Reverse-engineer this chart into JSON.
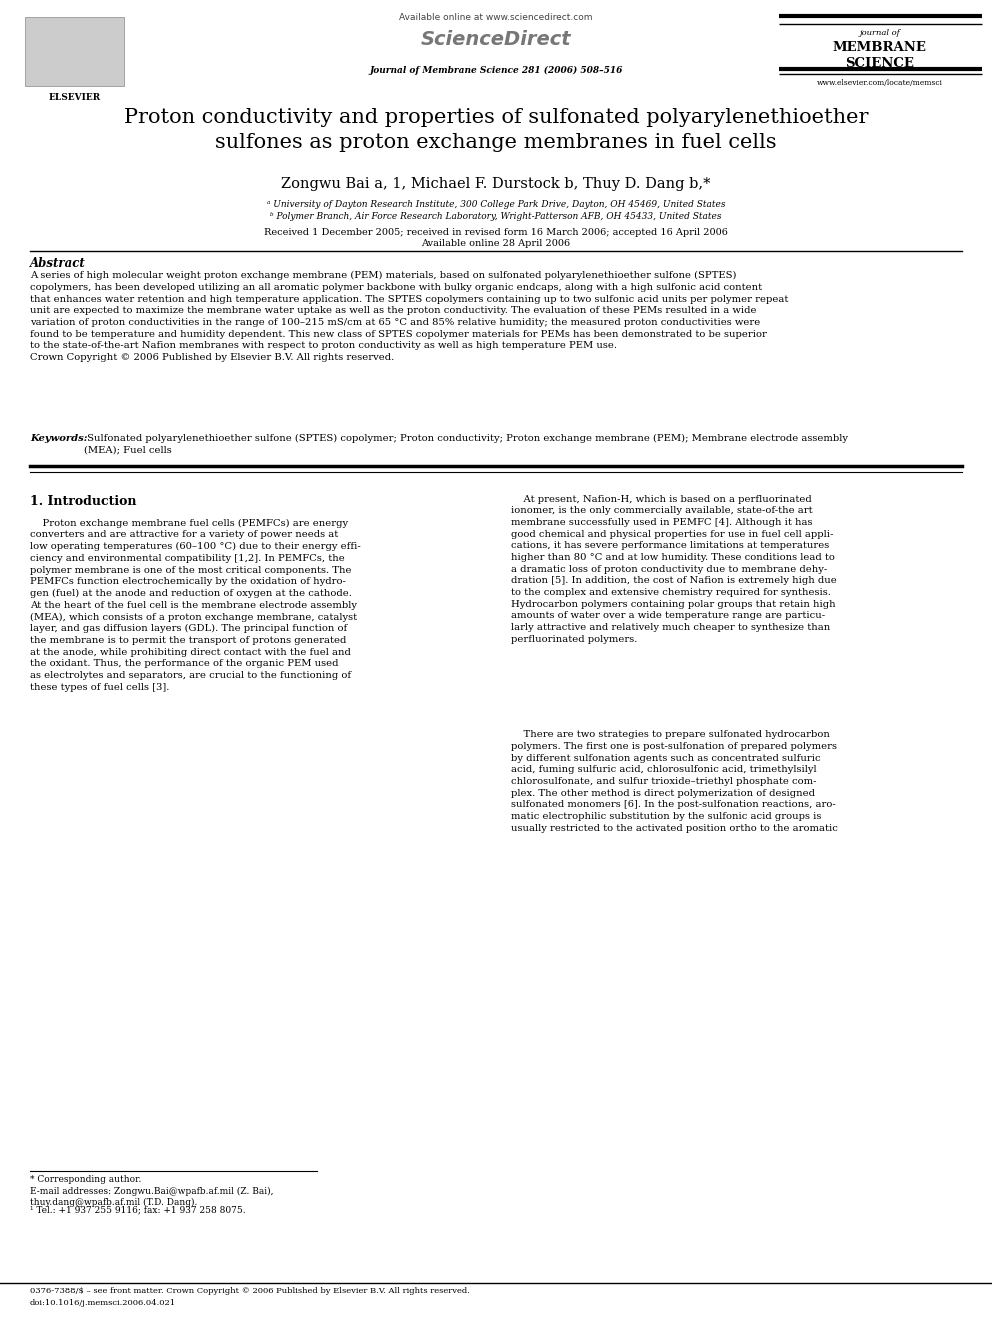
{
  "bg_color": "#ffffff",
  "page_width": 9.92,
  "page_height": 13.23,
  "header_available_online": "Available online at www.sciencedirect.com",
  "header_sciencedirect": "ScienceDirect",
  "header_journal_line1": "journal of",
  "header_journal_line2": "MEMBRANE",
  "header_journal_line3": "SCIENCE",
  "header_journal_ref": "Journal of Membrane Science 281 (2006) 508–516",
  "header_website": "www.elsevier.com/locate/memsci",
  "title": "Proton conductivity and properties of sulfonated polyarylenethioether\nsulfones as proton exchange membranes in fuel cells",
  "authors_line": "Zongwu Bai a, 1, Michael F. Durstock b, Thuy D. Dang b,*",
  "affil_a": "ᵃ University of Dayton Research Institute, 300 College Park Drive, Dayton, OH 45469, United States",
  "affil_b": "ᵇ Polymer Branch, Air Force Research Laboratory, Wright-Patterson AFB, OH 45433, United States",
  "received": "Received 1 December 2005; received in revised form 16 March 2006; accepted 16 April 2006",
  "available": "Available online 28 April 2006",
  "abstract_title": "Abstract",
  "abstract_text": "A series of high molecular weight proton exchange membrane (PEM) materials, based on sulfonated polyarylenethioether sulfone (SPTES)\ncopolymers, has been developed utilizing an all aromatic polymer backbone with bulky organic endcaps, along with a high sulfonic acid content\nthat enhances water retention and high temperature application. The SPTES copolymers containing up to two sulfonic acid units per polymer repeat\nunit are expected to maximize the membrane water uptake as well as the proton conductivity. The evaluation of these PEMs resulted in a wide\nvariation of proton conductivities in the range of 100–215 mS/cm at 65 °C and 85% relative humidity; the measured proton conductivities were\nfound to be temperature and humidity dependent. This new class of SPTES copolymer materials for PEMs has been demonstrated to be superior\nto the state-of-the-art Nafion membranes with respect to proton conductivity as well as high temperature PEM use.\nCrown Copyright © 2006 Published by Elsevier B.V. All rights reserved.",
  "keywords_label": "Keywords:",
  "keywords_text": " Sulfonated polyarylenethioether sulfone (SPTES) copolymer; Proton conductivity; Proton exchange membrane (PEM); Membrane electrode assembly\n(MEA); Fuel cells",
  "section1_title": "1. Introduction",
  "col1_para1": "    Proton exchange membrane fuel cells (PEMFCs) are energy\nconverters and are attractive for a variety of power needs at\nlow operating temperatures (60–100 °C) due to their energy effi-\nciency and environmental compatibility [1,2]. In PEMFCs, the\npolymer membrane is one of the most critical components. The\nPEMFCs function electrochemically by the oxidation of hydro-\ngen (fuel) at the anode and reduction of oxygen at the cathode.\nAt the heart of the fuel cell is the membrane electrode assembly\n(MEA), which consists of a proton exchange membrane, catalyst\nlayer, and gas diffusion layers (GDL). The principal function of\nthe membrane is to permit the transport of protons generated\nat the anode, while prohibiting direct contact with the fuel and\nthe oxidant. Thus, the performance of the organic PEM used\nas electrolytes and separators, are crucial to the functioning of\nthese types of fuel cells [3].",
  "col2_para1": "    At present, Nafion-H, which is based on a perfluorinated\nionomer, is the only commercially available, state-of-the art\nmembrane successfully used in PEMFC [4]. Although it has\ngood chemical and physical properties for use in fuel cell appli-\ncations, it has severe performance limitations at temperatures\nhigher than 80 °C and at low humidity. These conditions lead to\na dramatic loss of proton conductivity due to membrane dehy-\ndration [5]. In addition, the cost of Nafion is extremely high due\nto the complex and extensive chemistry required for synthesis.\nHydrocarbon polymers containing polar groups that retain high\namounts of water over a wide temperature range are particu-\nlarly attractive and relatively much cheaper to synthesize than\nperfluorinated polymers.",
  "col2_para2": "    There are two strategies to prepare sulfonated hydrocarbon\npolymers. The first one is post-sulfonation of prepared polymers\nby different sulfonation agents such as concentrated sulfuric\nacid, fuming sulfuric acid, chlorosulfonic acid, trimethylsilyl\nchlorosulfonate, and sulfur trioxide–triethyl phosphate com-\nplex. The other method is direct polymerization of designed\nsulfonated monomers [6]. In the post-sulfonation reactions, aro-\nmatic electrophilic substitution by the sulfonic acid groups is\nusually restricted to the activated position ortho to the aromatic",
  "footnote_star": "* Corresponding author.",
  "footnote_email": "E-mail addresses: Zongwu.Bai@wpafb.af.mil (Z. Bai),\nthuy.dang@wpafb.af.mil (T.D. Dang).",
  "footnote_1": "¹ Tel.: +1 937 255 9116; fax: +1 937 258 8075.",
  "bottom_text1": "0376-7388/$ – see front matter. Crown Copyright © 2006 Published by Elsevier B.V. All rights reserved.",
  "bottom_text2": "doi:10.1016/j.memsci.2006.04.021"
}
